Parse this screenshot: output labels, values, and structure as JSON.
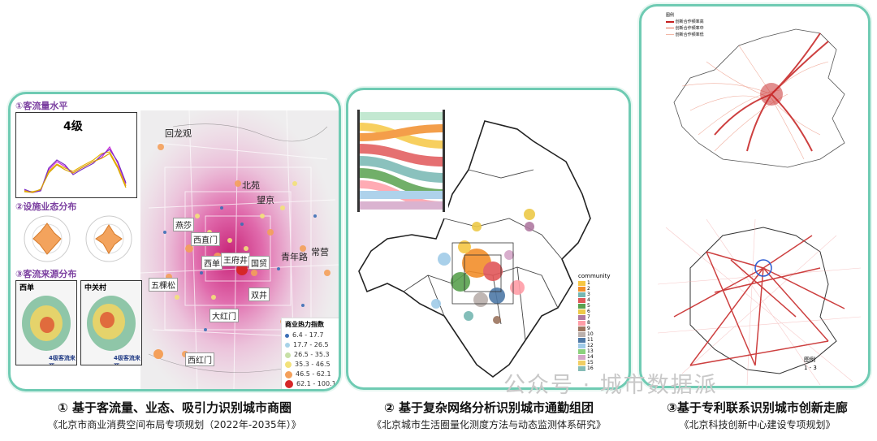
{
  "panel1": {
    "section1": "①客流量水平",
    "chart_level": "4级",
    "section2": "②设施业态分布",
    "section3": "③客流来源分布",
    "thumb1_title": "西单",
    "thumb2_title": "中关村",
    "thumb1_caption": "4级客流来源",
    "thumb2_caption": "4级客流来源",
    "map_labels": [
      "回龙观",
      "北苑",
      "望京",
      "燕莎",
      "西直门",
      "西单",
      "王府井",
      "国贸",
      "常营",
      "青年路",
      "五棵松",
      "双井",
      "大红门",
      "西红门"
    ],
    "legend_title": "商业热力指数",
    "legend_items": [
      "6.4 - 17.7",
      "17.7 - 26.5",
      "26.5 - 35.3",
      "35.3 - 46.5",
      "46.5 - 62.1",
      "62.1 - 100.1"
    ],
    "legend_colors": [
      "#3b6fb6",
      "#a7d3e8",
      "#c7e0a6",
      "#f3e27a",
      "#f4a05a",
      "#d62728"
    ],
    "caption": "① 基于客流量、业态、吸引力识别城市商圈",
    "source": "《北京市商业消费空间布局专项规划（2022年-2035年）》"
  },
  "panel2": {
    "legend_title": "community",
    "legend_items": [
      "1",
      "2",
      "3",
      "4",
      "5",
      "6",
      "7",
      "8",
      "9",
      "10",
      "11",
      "12",
      "13",
      "14",
      "15",
      "16"
    ],
    "legend_colors": [
      "#f6c744",
      "#f28e2b",
      "#76b7b2",
      "#e15759",
      "#59a14f",
      "#edc948",
      "#b07aa1",
      "#ff9da7",
      "#9c755f",
      "#bab0ac",
      "#4e79a7",
      "#a0cbe8",
      "#8cd17d",
      "#d4a6c8",
      "#f1ce63",
      "#86bcb6"
    ],
    "caption": "② 基于复杂网络分析识别城市通勤组团",
    "source": "《北京城市生活圈量化测度方法与动态监测体系研究》"
  },
  "panel3": {
    "legend_title": "图例",
    "legend_items": [
      "创新合作频率高",
      "创新合作频率中",
      "创新合作频率低"
    ],
    "legend2_title": "图例",
    "legend2_items": [
      "1 - 3"
    ],
    "caption": "③基于专利联系识别城市创新走廊",
    "source": "《北京科技创新中心建设专项规划》"
  },
  "watermark": "公众号 · 城市数据派"
}
